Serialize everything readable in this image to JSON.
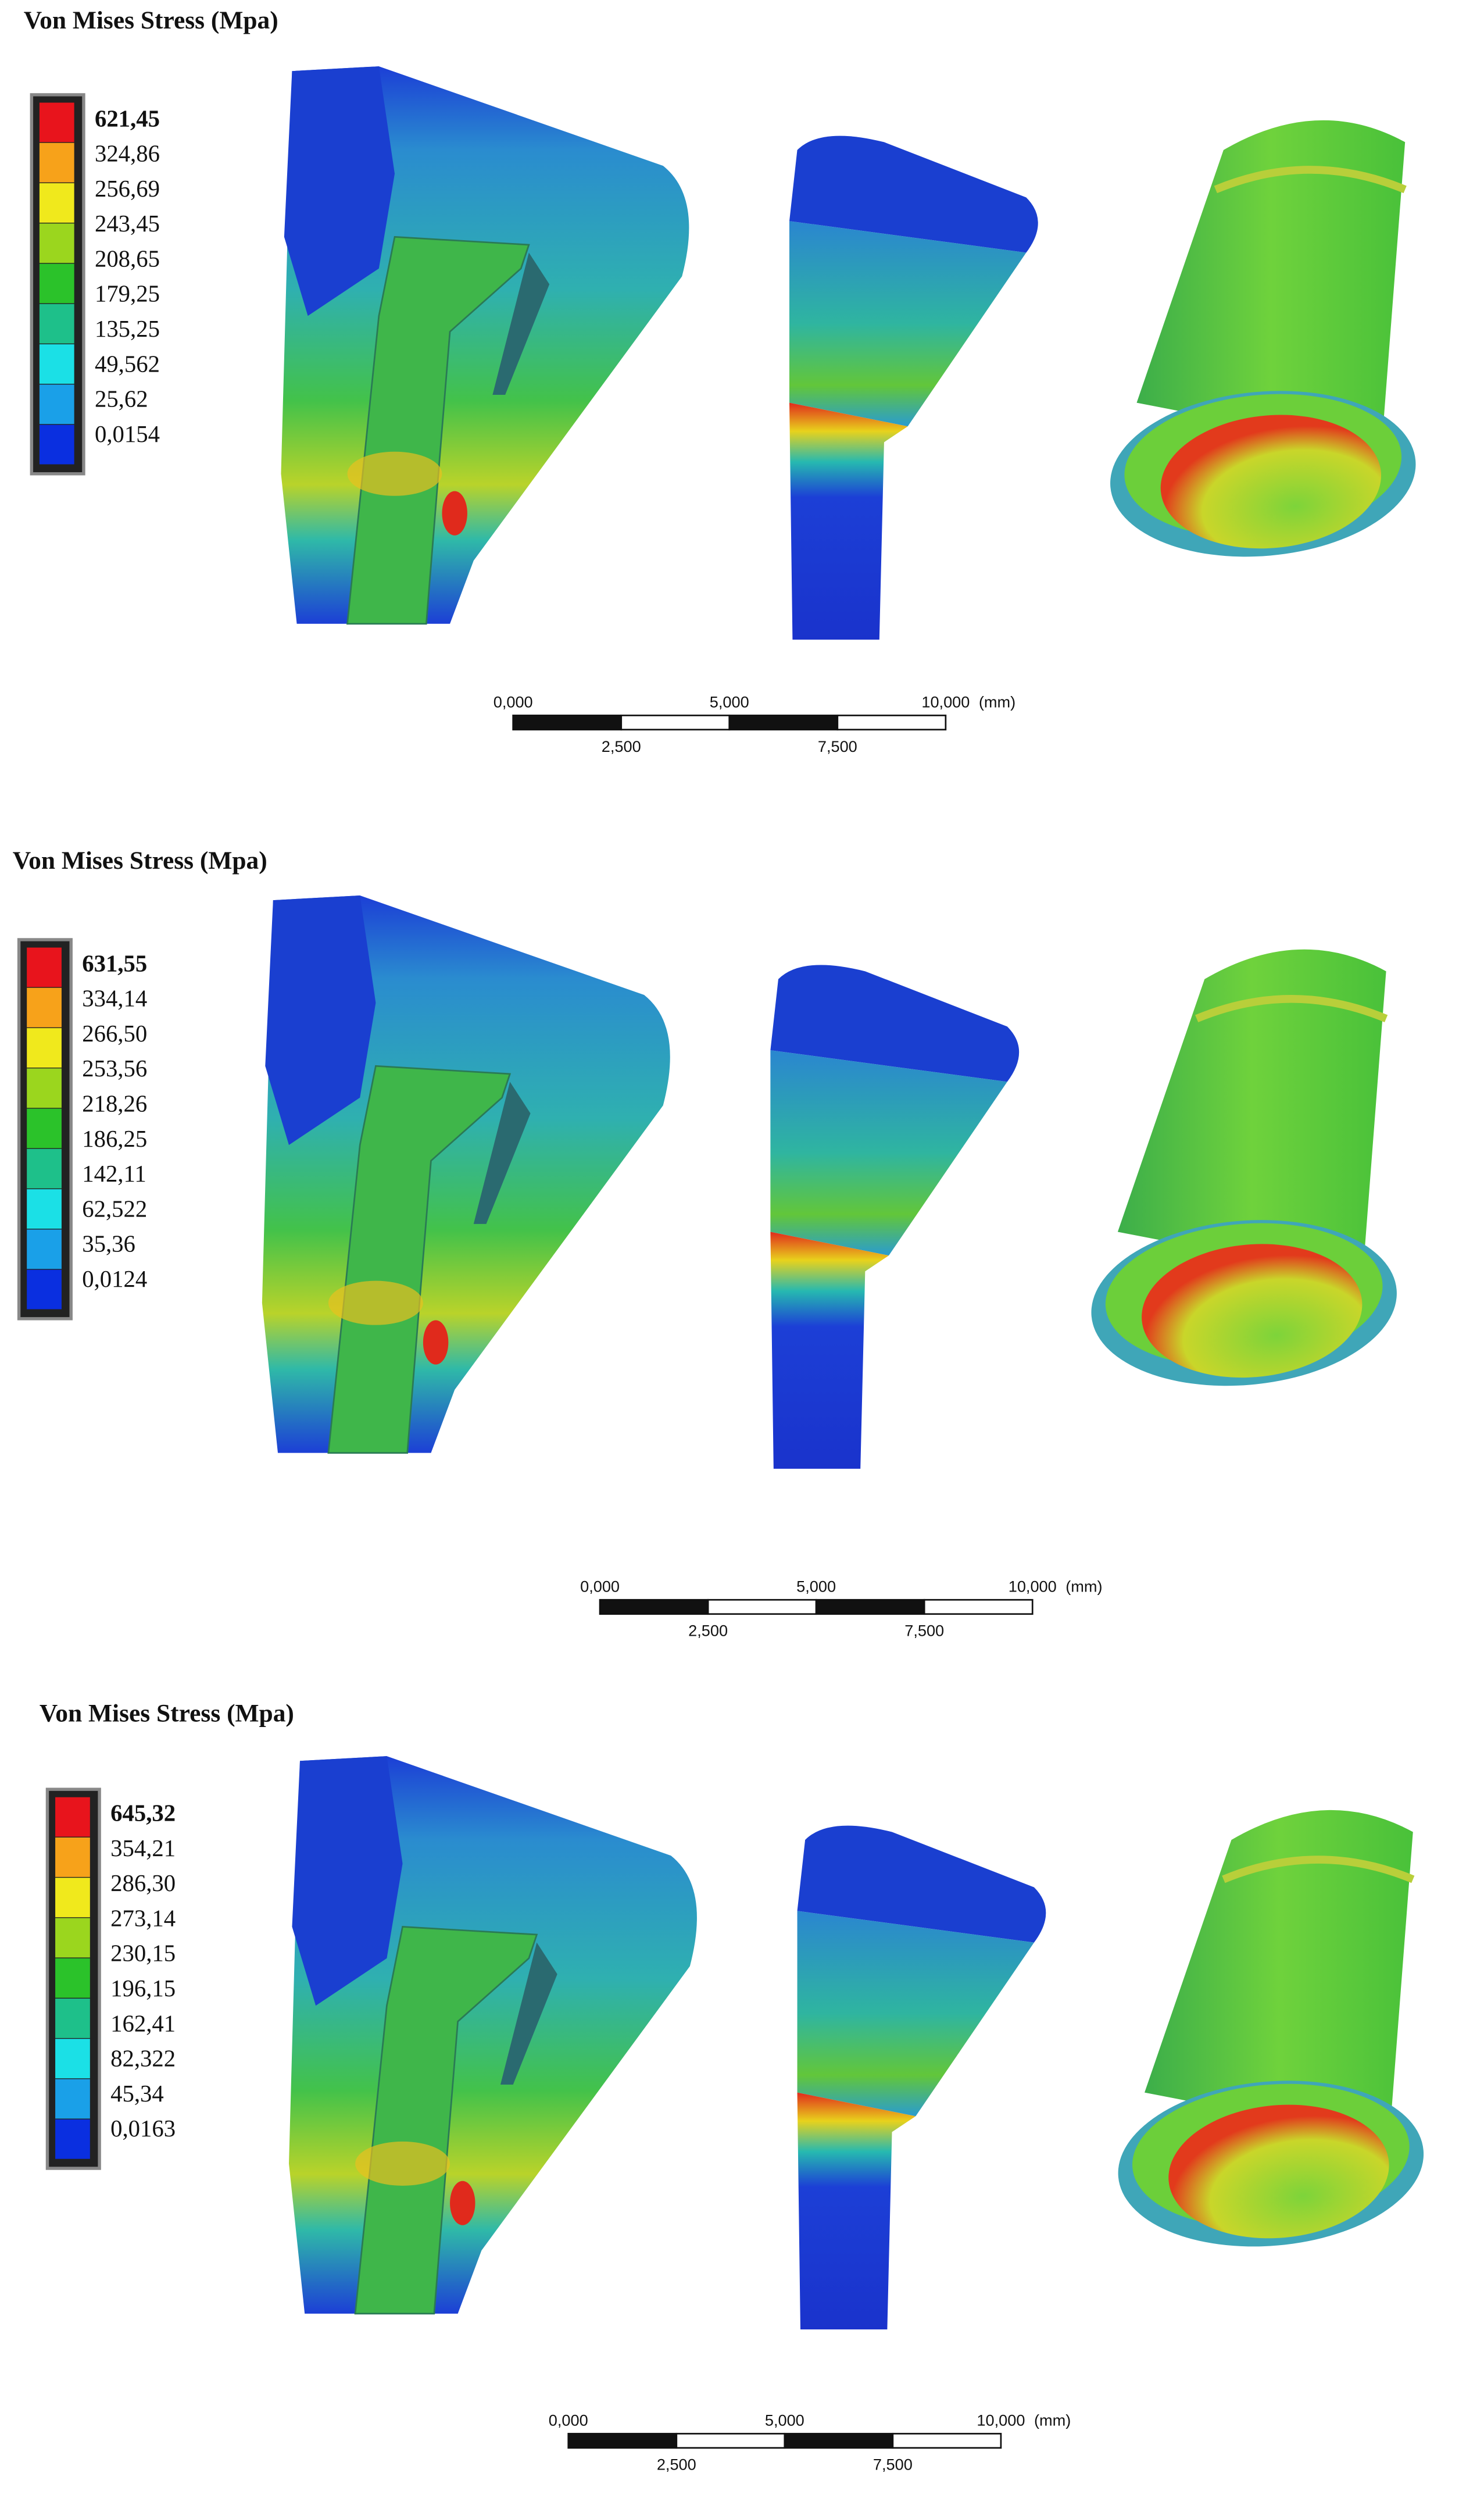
{
  "panels": [
    {
      "title": "Von Mises Stress (Mpa)",
      "legend": [
        "621,45",
        "324,86",
        "256,69",
        "243,45",
        "208,65",
        "179,25",
        "135,25",
        "49,562",
        "25,62",
        "0,0154"
      ],
      "scale": {
        "top": [
          "0,000",
          "5,000",
          "10,000"
        ],
        "unit": "(mm)",
        "bottom": [
          "2,500",
          "7,500"
        ]
      }
    },
    {
      "title": "Von Mises Stress (Mpa)",
      "legend": [
        "631,55",
        "334,14",
        "266,50",
        "253,56",
        "218,26",
        "186,25",
        "142,11",
        "62,522",
        "35,36",
        "0,0124"
      ],
      "scale": {
        "top": [
          "0,000",
          "5,000",
          "10,000"
        ],
        "unit": "(mm)",
        "bottom": [
          "2,500",
          "7,500"
        ]
      }
    },
    {
      "title": "Von Mises Stress (Mpa)",
      "legend": [
        "645,32",
        "354,21",
        "286,30",
        "273,14",
        "230,15",
        "196,15",
        "162,41",
        "82,322",
        "45,34",
        "0,0163"
      ],
      "scale": {
        "top": [
          "0,000",
          "5,000",
          "10,000"
        ],
        "unit": "(mm)",
        "bottom": [
          "2,500",
          "7,500"
        ]
      }
    }
  ]
}
